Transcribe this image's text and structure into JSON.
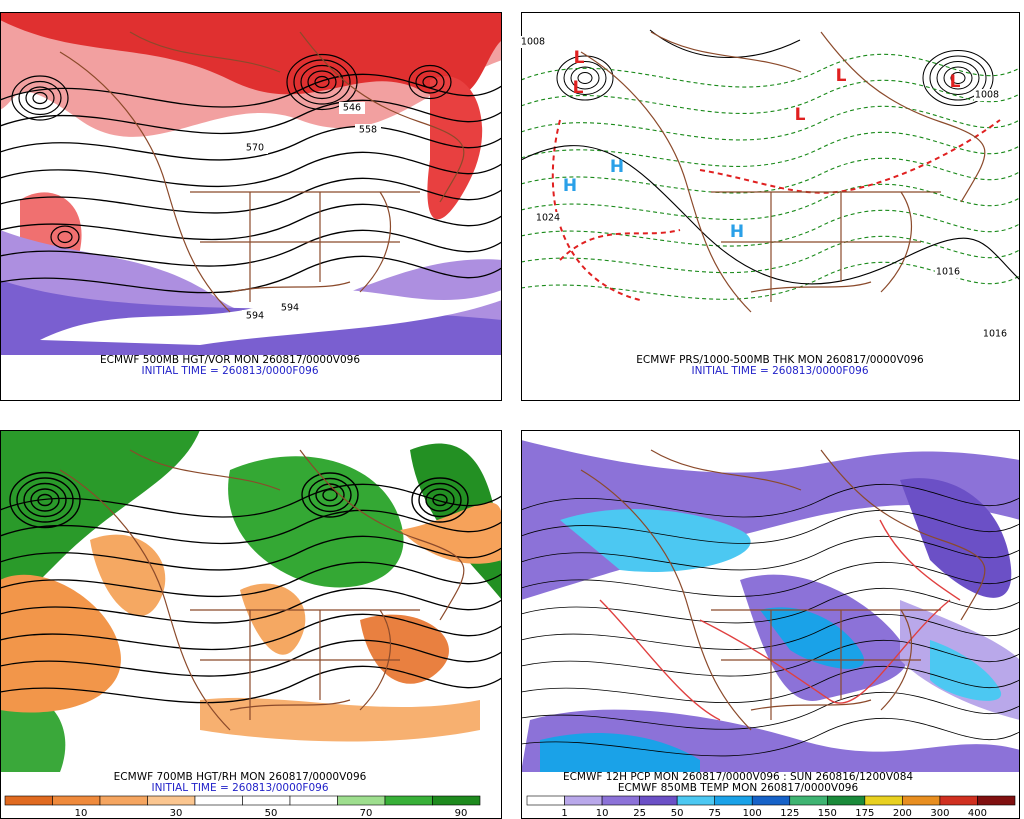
{
  "panels": [
    {
      "caption": "ECMWF 500MB HGT/VOR MON 260817/0000V096",
      "subcaption": "INITIAL TIME = 260813/0000F096",
      "contour_labels": [
        "570",
        "546",
        "558",
        "594",
        "594"
      ]
    },
    {
      "caption": "ECMWF PRS/1000-500MB THK MON 260817/0000V096",
      "subcaption": "INITIAL TIME = 260813/0000F096",
      "contour_labels": [
        "1008",
        "1024",
        "1016",
        "1016",
        "1008"
      ],
      "markers": [
        "L",
        "L",
        "L",
        "L",
        "L",
        "H",
        "H",
        "H"
      ]
    },
    {
      "caption": "ECMWF 700MB HGT/RH MON 260817/0000V096",
      "subcaption": "INITIAL TIME = 260813/0000F096",
      "colorbar": {
        "colors": [
          "#e06a20",
          "#ef8a3c",
          "#f5a560",
          "#fbc690",
          "#ffffff",
          "#ffffff",
          "#ffffff",
          "#9ede8e",
          "#38b038",
          "#1e8a1e"
        ],
        "labels": [
          10,
          30,
          50,
          70,
          90
        ]
      }
    },
    {
      "caption": "ECMWF 12H PCP MON 260817/0000V096 : SUN 260816/1200V084",
      "subcaption": "ECMWF 850MB TEMP MON 260817/0000V096",
      "colorbar": {
        "colors": [
          "#ffffff",
          "#b9a8ea",
          "#8c72d8",
          "#6b50c6",
          "#4cc8f2",
          "#1aa2e8",
          "#1662c8",
          "#3fb472",
          "#1a8a3a",
          "#e8d020",
          "#e88e20",
          "#d03020",
          "#801010"
        ],
        "labels": [
          1,
          10,
          25,
          50,
          75,
          100,
          125,
          150,
          175,
          200,
          300,
          400
        ]
      }
    }
  ]
}
